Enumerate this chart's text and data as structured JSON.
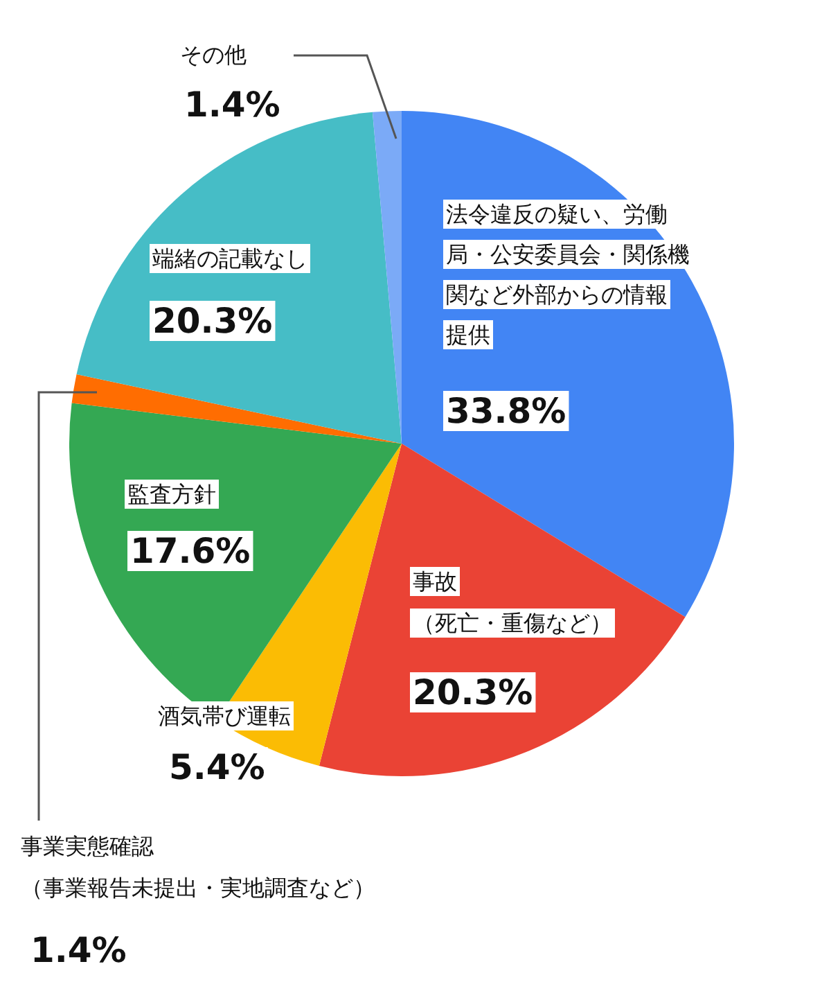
{
  "chart_data": {
    "type": "pie",
    "categories": [
      "法令違反の疑い、労働局・公安委員会・関係機関など外部からの情報提供",
      "事故（死亡・重傷など）",
      "酒気帯び運転",
      "監査方針",
      "事業実態確認（事業報告未提出・実地調査など）",
      "端緒の記載なし",
      "その他"
    ],
    "values": [
      33.8,
      20.3,
      5.4,
      17.6,
      1.4,
      20.3,
      1.4
    ],
    "value_labels": [
      "33.8%",
      "20.3%",
      "5.4%",
      "17.6%",
      "1.4%",
      "20.3%",
      "1.4%"
    ],
    "colors": [
      "#4285f4",
      "#ea4335",
      "#fbbc04",
      "#34a853",
      "#ff6d01",
      "#46bdc6",
      "#7baaf7"
    ]
  }
}
